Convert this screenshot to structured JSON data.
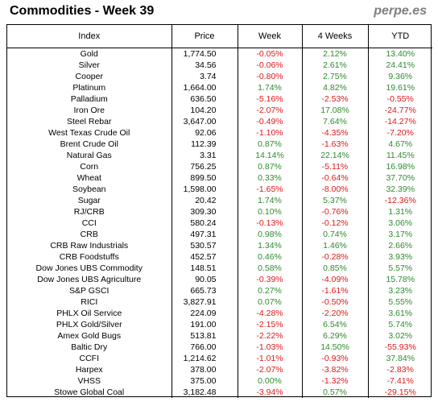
{
  "header": {
    "title": "Commodities - Week 39",
    "brand": "perpe.es"
  },
  "columns": [
    "Index",
    "Price",
    "Week",
    "4 Weeks",
    "YTD"
  ],
  "rows": [
    {
      "name": "Gold",
      "price": "1,774.50",
      "week": "-0.05%",
      "w4": "2.12%",
      "ytd": "13.40%"
    },
    {
      "name": "Silver",
      "price": "34.56",
      "week": "-0.06%",
      "w4": "2.61%",
      "ytd": "24.41%"
    },
    {
      "name": "Cooper",
      "price": "3.74",
      "week": "-0.80%",
      "w4": "2.75%",
      "ytd": "9.36%"
    },
    {
      "name": "Platinum",
      "price": "1,664.00",
      "week": "1.74%",
      "w4": "4.82%",
      "ytd": "19.61%"
    },
    {
      "name": "Palladium",
      "price": "636.50",
      "week": "-5.16%",
      "w4": "-2.53%",
      "ytd": "-0.55%"
    },
    {
      "name": "Iron Ore",
      "price": "104.20",
      "week": "-2.07%",
      "w4": "17.08%",
      "ytd": "-24.77%"
    },
    {
      "name": "Steel Rebar",
      "price": "3,647.00",
      "week": "-0.49%",
      "w4": "7.64%",
      "ytd": "-14.27%"
    },
    {
      "name": "West Texas Crude Oil",
      "price": "92.06",
      "week": "-1.10%",
      "w4": "-4.35%",
      "ytd": "-7.20%"
    },
    {
      "name": "Brent Crude Oil",
      "price": "112.39",
      "week": "0.87%",
      "w4": "-1.63%",
      "ytd": "4.67%"
    },
    {
      "name": "Natural Gas",
      "price": "3.31",
      "week": "14.14%",
      "w4": "22.14%",
      "ytd": "11.45%"
    },
    {
      "name": "Corn",
      "price": "756.25",
      "week": "0.87%",
      "w4": "-5.11%",
      "ytd": "16.98%"
    },
    {
      "name": "Wheat",
      "price": "899.50",
      "week": "0.33%",
      "w4": "-0.64%",
      "ytd": "37.70%"
    },
    {
      "name": "Soybean",
      "price": "1,598.00",
      "week": "-1.65%",
      "w4": "-8.00%",
      "ytd": "32.39%"
    },
    {
      "name": "Sugar",
      "price": "20.42",
      "week": "1.74%",
      "w4": "5.37%",
      "ytd": "-12.36%"
    },
    {
      "name": "RJ/CRB",
      "price": "309.30",
      "week": "0.10%",
      "w4": "-0.76%",
      "ytd": "1.31%"
    },
    {
      "name": "CCI",
      "price": "580.24",
      "week": "-0.13%",
      "w4": "-0.12%",
      "ytd": "3.06%"
    },
    {
      "name": "CRB",
      "price": "497.31",
      "week": "0.98%",
      "w4": "0.74%",
      "ytd": "3.17%"
    },
    {
      "name": "CRB Raw Industrials",
      "price": "530.57",
      "week": "1.34%",
      "w4": "1.46%",
      "ytd": "2.66%"
    },
    {
      "name": "CRB Foodstuffs",
      "price": "452.57",
      "week": "0.46%",
      "w4": "-0.28%",
      "ytd": "3.93%"
    },
    {
      "name": "Dow Jones UBS Commodity",
      "price": "148.51",
      "week": "0.58%",
      "w4": "0.85%",
      "ytd": "5.57%"
    },
    {
      "name": "Dow Jones UBS Agriculture",
      "price": "90.05",
      "week": "-0.39%",
      "w4": "-4.09%",
      "ytd": "15.78%"
    },
    {
      "name": "S&P GSCI",
      "price": "665.73",
      "week": "0.27%",
      "w4": "-1.61%",
      "ytd": "3.23%"
    },
    {
      "name": "RICI",
      "price": "3,827.91",
      "week": "0.07%",
      "w4": "-0.50%",
      "ytd": "5.55%"
    },
    {
      "name": "PHLX Oil Service",
      "price": "224.09",
      "week": "-4.28%",
      "w4": "-2.20%",
      "ytd": "3.61%"
    },
    {
      "name": "PHLX Gold/Silver",
      "price": "191.00",
      "week": "-2.15%",
      "w4": "6.54%",
      "ytd": "5.74%"
    },
    {
      "name": "Amex Gold Bugs",
      "price": "513.81",
      "week": "-2.22%",
      "w4": "6.29%",
      "ytd": "3.02%"
    },
    {
      "name": "Baltic Dry",
      "price": "766.00",
      "week": "-1.03%",
      "w4": "14.50%",
      "ytd": "-55.93%"
    },
    {
      "name": "CCFI",
      "price": "1,214.62",
      "week": "-1.01%",
      "w4": "-0.93%",
      "ytd": "37.84%"
    },
    {
      "name": "Harpex",
      "price": "378.00",
      "week": "-2.07%",
      "w4": "-3.82%",
      "ytd": "-2.83%"
    },
    {
      "name": "VHSS",
      "price": "375.00",
      "week": "0.00%",
      "w4": "-1.32%",
      "ytd": "-7.41%"
    },
    {
      "name": "Stowe Global Coal",
      "price": "3,182.48",
      "week": "-3.94%",
      "w4": "0.57%",
      "ytd": "-29.15%"
    }
  ],
  "colors": {
    "positive": "#2e8b2e",
    "negative": "#e01818",
    "border": "#000000",
    "brand": "#7f7f7f"
  }
}
